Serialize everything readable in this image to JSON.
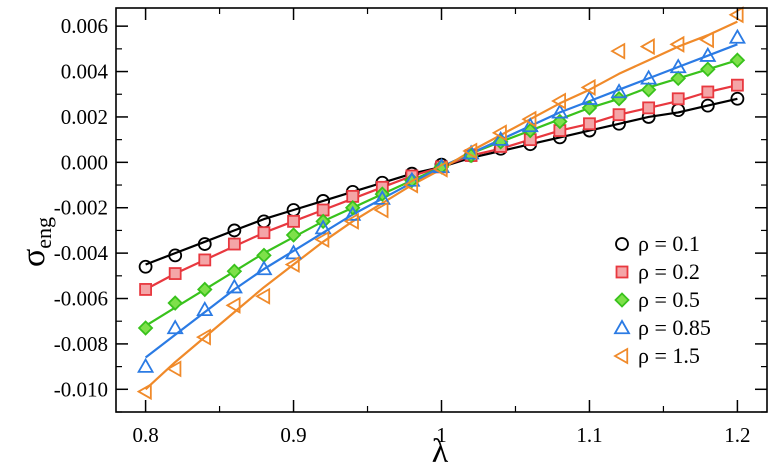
{
  "chart_data": {
    "type": "scatter",
    "title": "",
    "xlabel": "λ",
    "ylabel_main": "σ",
    "ylabel_sub": "eng",
    "xlim": [
      0.78,
      1.22
    ],
    "ylim": [
      -0.011,
      0.0068
    ],
    "grid": false,
    "legend_position": "bottom-right",
    "x_ticks": [
      {
        "value": 0.8,
        "label": "0.8"
      },
      {
        "value": 0.9,
        "label": "0.9"
      },
      {
        "value": 1.0,
        "label": "1"
      },
      {
        "value": 1.1,
        "label": "1.1"
      },
      {
        "value": 1.2,
        "label": "1.2"
      }
    ],
    "y_ticks": [
      {
        "value": 0.006,
        "label": "0.006"
      },
      {
        "value": 0.004,
        "label": "0.004"
      },
      {
        "value": 0.002,
        "label": "0.002"
      },
      {
        "value": 0.0,
        "label": "0.000"
      },
      {
        "value": -0.002,
        "label": "-0.002"
      },
      {
        "value": -0.004,
        "label": "-0.004"
      },
      {
        "value": -0.006,
        "label": "-0.006"
      },
      {
        "value": -0.008,
        "label": "-0.008"
      },
      {
        "value": -0.01,
        "label": "-0.010"
      }
    ],
    "x": [
      0.8,
      0.82,
      0.84,
      0.86,
      0.88,
      0.9,
      0.92,
      0.94,
      0.96,
      0.98,
      1.0,
      1.02,
      1.04,
      1.06,
      1.08,
      1.1,
      1.12,
      1.14,
      1.16,
      1.18,
      1.2
    ],
    "series": [
      {
        "name": "ρ = 0.1",
        "marker": "circle",
        "color": "#000000",
        "fill": "none",
        "points": [
          -0.0046,
          -0.0041,
          -0.0036,
          -0.003,
          -0.0026,
          -0.0021,
          -0.0017,
          -0.0013,
          -0.0009,
          -0.0005,
          -0.0001,
          0.0003,
          0.0006,
          0.0008,
          0.0011,
          0.0014,
          0.0017,
          0.002,
          0.0023,
          0.0025,
          0.0028
        ],
        "fit": [
          -0.0045,
          -0.004,
          -0.0035,
          -0.003,
          -0.0025,
          -0.0021,
          -0.0017,
          -0.0013,
          -0.0009,
          -0.0005,
          -0.0002,
          0.0002,
          0.0005,
          0.0008,
          0.0011,
          0.0014,
          0.0017,
          0.002,
          0.0022,
          0.0025,
          0.0028
        ]
      },
      {
        "name": "ρ = 0.2",
        "marker": "square",
        "color": "#e8383f",
        "fill": "#f4a5a7",
        "points": [
          -0.0056,
          -0.0049,
          -0.0043,
          -0.0036,
          -0.0031,
          -0.0026,
          -0.0021,
          -0.0015,
          -0.0011,
          -0.0006,
          -0.0002,
          0.0003,
          0.0007,
          0.001,
          0.0014,
          0.0017,
          0.0021,
          0.0024,
          0.0028,
          0.0031,
          0.0034
        ],
        "fit": [
          -0.0056,
          -0.0049,
          -0.0043,
          -0.0037,
          -0.0031,
          -0.0026,
          -0.0021,
          -0.0016,
          -0.0011,
          -0.0006,
          -0.0002,
          0.0003,
          0.0006,
          0.001,
          0.0014,
          0.0017,
          0.0021,
          0.0024,
          0.0027,
          0.0031,
          0.0034
        ]
      },
      {
        "name": "ρ = 0.5",
        "marker": "diamond",
        "color": "#39c21c",
        "fill": "#7ee04a",
        "points": [
          -0.0073,
          -0.0062,
          -0.0056,
          -0.0048,
          -0.0041,
          -0.0032,
          -0.0026,
          -0.002,
          -0.0014,
          -0.0008,
          -0.0002,
          0.0003,
          0.0009,
          0.0014,
          0.0018,
          0.0024,
          0.0028,
          0.0032,
          0.0037,
          0.0041,
          0.0045
        ],
        "fit": [
          -0.0072,
          -0.0064,
          -0.0056,
          -0.0048,
          -0.004,
          -0.0033,
          -0.0026,
          -0.002,
          -0.0014,
          -0.0008,
          -0.0002,
          0.0004,
          0.0009,
          0.0014,
          0.0019,
          0.0024,
          0.0028,
          0.0033,
          0.0037,
          0.0041,
          0.0045
        ]
      },
      {
        "name": "ρ = 0.85",
        "marker": "triangle-up",
        "color": "#2b7be4",
        "fill": "none",
        "points": [
          -0.009,
          -0.0073,
          -0.0065,
          -0.0055,
          -0.0047,
          -0.004,
          -0.0029,
          -0.0023,
          -0.0016,
          -0.0008,
          -0.0002,
          0.0004,
          0.001,
          0.0016,
          0.0022,
          0.0028,
          0.0031,
          0.0037,
          0.0042,
          0.0047,
          0.0055
        ],
        "fit": [
          -0.0086,
          -0.0076,
          -0.0066,
          -0.0056,
          -0.0047,
          -0.0039,
          -0.0031,
          -0.0023,
          -0.0016,
          -0.0009,
          -0.0002,
          0.0004,
          0.001,
          0.0016,
          0.0022,
          0.0027,
          0.0032,
          0.0037,
          0.0042,
          0.0047,
          0.0052
        ]
      },
      {
        "name": "ρ = 1.5",
        "marker": "triangle-left",
        "color": "#f08a2a",
        "fill": "none",
        "points": [
          -0.0101,
          -0.0091,
          -0.0077,
          -0.0063,
          -0.0059,
          -0.0045,
          -0.0034,
          -0.0026,
          -0.0021,
          -0.001,
          -0.0003,
          0.0005,
          0.0013,
          0.0019,
          0.0027,
          0.0033,
          0.0049,
          0.0051,
          0.0052,
          0.0054,
          0.0065
        ],
        "fit": [
          -0.01,
          -0.0088,
          -0.0077,
          -0.0066,
          -0.0055,
          -0.0045,
          -0.0035,
          -0.0026,
          -0.0018,
          -0.001,
          -0.0003,
          0.0005,
          0.0012,
          0.0019,
          0.0026,
          0.0032,
          0.0039,
          0.0045,
          0.0051,
          0.0056,
          0.0062
        ]
      }
    ]
  }
}
